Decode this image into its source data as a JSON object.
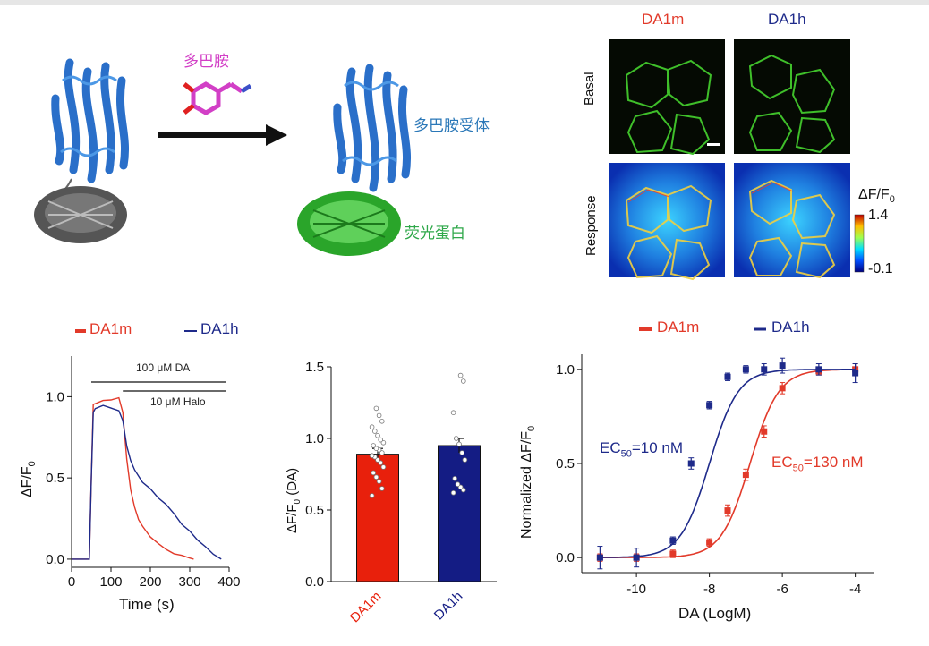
{
  "colors": {
    "dopamine_label": "#d23fc6",
    "receptor_label": "#2b78b8",
    "fluor_label": "#2fa84a",
    "da1m": "#e23a2a",
    "da1h": "#1e2a8a",
    "bar_da1m": "#e8200c",
    "bar_da1h": "#141c84"
  },
  "schematic": {
    "dopamine_label": "多巴胺",
    "receptor_label": "多巴胺受体",
    "fluor_label": "荧光蛋白"
  },
  "imaging": {
    "col_labels": [
      "DA1m",
      "DA1h"
    ],
    "row_labels": [
      "Basal",
      "Response"
    ],
    "colorbar_title": "ΔF/F",
    "colorbar_sub": "0",
    "colorbar_max": "1.4",
    "colorbar_min": "-0.1"
  },
  "trace_panel": {
    "legend": [
      "DA1m",
      "DA1h"
    ],
    "ann_da": "100 μM DA",
    "ann_halo": "10 μM Halo",
    "ylabel_main": "ΔF/F",
    "ylabel_sub": "0",
    "xlabel": "Time (s)"
  },
  "bar_panel": {
    "ylabel_main": "ΔF/F",
    "ylabel_sub": "0",
    "ylabel_tail": " (DA)"
  },
  "dose_panel": {
    "legend": [
      "DA1m",
      "DA1h"
    ],
    "ylabel": "Normalized ΔF/F",
    "ylabel_sub": "0",
    "xlabel": "DA (LogM)",
    "ec50_h_pre": "EC",
    "ec50_h_sub": "50",
    "ec50_h_post": "=10 nM",
    "ec50_m_pre": "EC",
    "ec50_m_sub": "50",
    "ec50_m_post": "=130 nM"
  },
  "chart_data": [
    {
      "type": "line",
      "xlabel": "Time (s)",
      "ylabel": "ΔF/F0",
      "xlim": [
        0,
        400
      ],
      "ylim": [
        -0.05,
        1.25
      ],
      "xticks": [
        0,
        100,
        200,
        300,
        400
      ],
      "yticks": [
        0.0,
        0.5,
        1.0
      ],
      "annotations": [
        {
          "text": "100 μM DA",
          "x_start": 50,
          "x_end": 390
        },
        {
          "text": "10 μM Halo",
          "x_start": 130,
          "x_end": 390
        }
      ],
      "series": [
        {
          "name": "DA1m",
          "x": [
            0,
            45,
            50,
            55,
            60,
            80,
            100,
            120,
            130,
            140,
            150,
            160,
            170,
            180,
            200,
            220,
            240,
            260,
            280,
            300,
            310
          ],
          "y": [
            0.0,
            0.0,
            0.5,
            0.95,
            0.96,
            0.97,
            0.98,
            1.0,
            0.9,
            0.62,
            0.42,
            0.32,
            0.25,
            0.2,
            0.14,
            0.09,
            0.06,
            0.04,
            0.02,
            0.01,
            0.0
          ]
        },
        {
          "name": "DA1h",
          "x": [
            0,
            45,
            50,
            55,
            60,
            80,
            100,
            120,
            130,
            140,
            150,
            160,
            180,
            200,
            220,
            240,
            260,
            280,
            300,
            320,
            340,
            360,
            380
          ],
          "y": [
            0.0,
            0.0,
            0.5,
            0.9,
            0.93,
            0.94,
            0.93,
            0.92,
            0.85,
            0.7,
            0.6,
            0.55,
            0.48,
            0.43,
            0.38,
            0.33,
            0.28,
            0.22,
            0.17,
            0.12,
            0.07,
            0.03,
            0.0
          ]
        }
      ]
    },
    {
      "type": "bar",
      "categories": [
        "DA1m",
        "DA1h"
      ],
      "values": [
        0.89,
        0.95
      ],
      "errors": [
        0.04,
        0.05
      ],
      "ylabel": "ΔF/F0 (DA)",
      "ylim": [
        0,
        1.5
      ],
      "yticks": [
        0.0,
        0.5,
        1.0,
        1.5
      ],
      "points": [
        [
          0.6,
          0.65,
          0.7,
          0.73,
          0.76,
          0.8,
          0.83,
          0.85,
          0.87,
          0.88,
          0.9,
          0.92,
          0.93,
          0.95,
          0.97,
          0.99,
          1.02,
          1.05,
          1.08,
          1.12,
          1.16,
          1.21
        ],
        [
          0.62,
          0.64,
          0.66,
          0.68,
          0.72,
          0.85,
          0.9,
          0.96,
          1.0,
          1.18,
          1.4,
          1.44
        ]
      ]
    },
    {
      "type": "scatter",
      "xlabel": "DA (LogM)",
      "ylabel": "Normalized ΔF/F0",
      "xlim": [
        -11.5,
        -3.5
      ],
      "ylim": [
        -0.08,
        1.08
      ],
      "xticks": [
        -10,
        -8,
        -6,
        -4
      ],
      "yticks": [
        0.0,
        0.5,
        1.0
      ],
      "series": [
        {
          "name": "DA1m",
          "ec50_log": -6.886,
          "x": [
            -11,
            -10,
            -9,
            -8,
            -7.5,
            -7,
            -6.5,
            -6,
            -5,
            -4
          ],
          "y": [
            0.0,
            0.0,
            0.02,
            0.08,
            0.25,
            0.44,
            0.67,
            0.9,
            0.99,
            1.0
          ],
          "err": [
            0.02,
            0.02,
            0.02,
            0.02,
            0.03,
            0.03,
            0.03,
            0.03,
            0.02,
            0.03
          ]
        },
        {
          "name": "DA1h",
          "ec50_log": -8.0,
          "x": [
            -11,
            -10,
            -9,
            -8.5,
            -8,
            -7.5,
            -7,
            -6.5,
            -6,
            -5,
            -4
          ],
          "y": [
            0.0,
            0.0,
            0.09,
            0.5,
            0.81,
            0.96,
            1.0,
            1.0,
            1.02,
            1.0,
            0.98
          ],
          "err": [
            0.06,
            0.05,
            0.02,
            0.03,
            0.02,
            0.02,
            0.02,
            0.03,
            0.04,
            0.03,
            0.05
          ]
        }
      ]
    }
  ]
}
